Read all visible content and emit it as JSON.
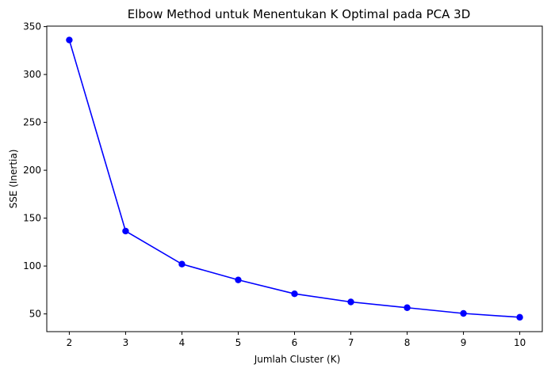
{
  "chart_data": {
    "type": "line",
    "title": "Elbow Method untuk Menentukan K Optimal pada PCA 3D",
    "xlabel": "Jumlah Cluster (K)",
    "ylabel": "SSE (Inertia)",
    "x": [
      2,
      3,
      4,
      5,
      6,
      7,
      8,
      9,
      10
    ],
    "series": [
      {
        "values": [
          336,
          136.5,
          102,
          85.5,
          71,
          62.5,
          56.5,
          50.5,
          46.5
        ],
        "color": "#0000ff",
        "marker": "circle"
      }
    ],
    "xticks": [
      "2",
      "3",
      "4",
      "5",
      "6",
      "7",
      "8",
      "9",
      "10"
    ],
    "yticks": [
      "50",
      "100",
      "150",
      "200",
      "250",
      "300",
      "350"
    ],
    "xlim": [
      1.6,
      10.4
    ],
    "ylim": [
      31.5,
      350.5
    ],
    "grid": false,
    "legend": "none"
  }
}
